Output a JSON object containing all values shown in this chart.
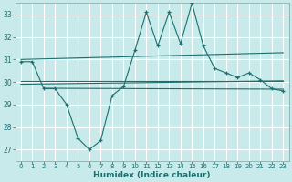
{
  "title": "",
  "xlabel": "Humidex (Indice chaleur)",
  "bg_color": "#c8eaea",
  "grid_color": "#ffffff",
  "line_color": "#1a7070",
  "xlim": [
    -0.5,
    23.5
  ],
  "ylim": [
    26.5,
    33.5
  ],
  "yticks": [
    27,
    28,
    29,
    30,
    31,
    32,
    33
  ],
  "xticks": [
    0,
    1,
    2,
    3,
    4,
    5,
    6,
    7,
    8,
    9,
    10,
    11,
    12,
    13,
    14,
    15,
    16,
    17,
    18,
    19,
    20,
    21,
    22,
    23
  ],
  "humidex_x": [
    0,
    1,
    2,
    3,
    4,
    5,
    6,
    7,
    8,
    9,
    10,
    11,
    12,
    13,
    14,
    15,
    16,
    17,
    18,
    19,
    20,
    21,
    22,
    23
  ],
  "humidex_y": [
    30.9,
    30.9,
    29.7,
    29.7,
    29.0,
    27.5,
    27.0,
    27.4,
    29.4,
    29.8,
    31.4,
    33.1,
    31.6,
    33.1,
    31.7,
    33.5,
    31.6,
    30.6,
    30.4,
    30.2,
    30.4,
    30.1,
    29.7,
    29.6
  ],
  "ref_lines": [
    {
      "x": [
        0,
        23
      ],
      "y": [
        31.0,
        31.3
      ]
    },
    {
      "x": [
        0,
        23
      ],
      "y": [
        30.05,
        30.05
      ]
    },
    {
      "x": [
        0,
        23
      ],
      "y": [
        29.9,
        30.05
      ]
    },
    {
      "x": [
        2,
        23
      ],
      "y": [
        29.72,
        29.68
      ]
    }
  ]
}
